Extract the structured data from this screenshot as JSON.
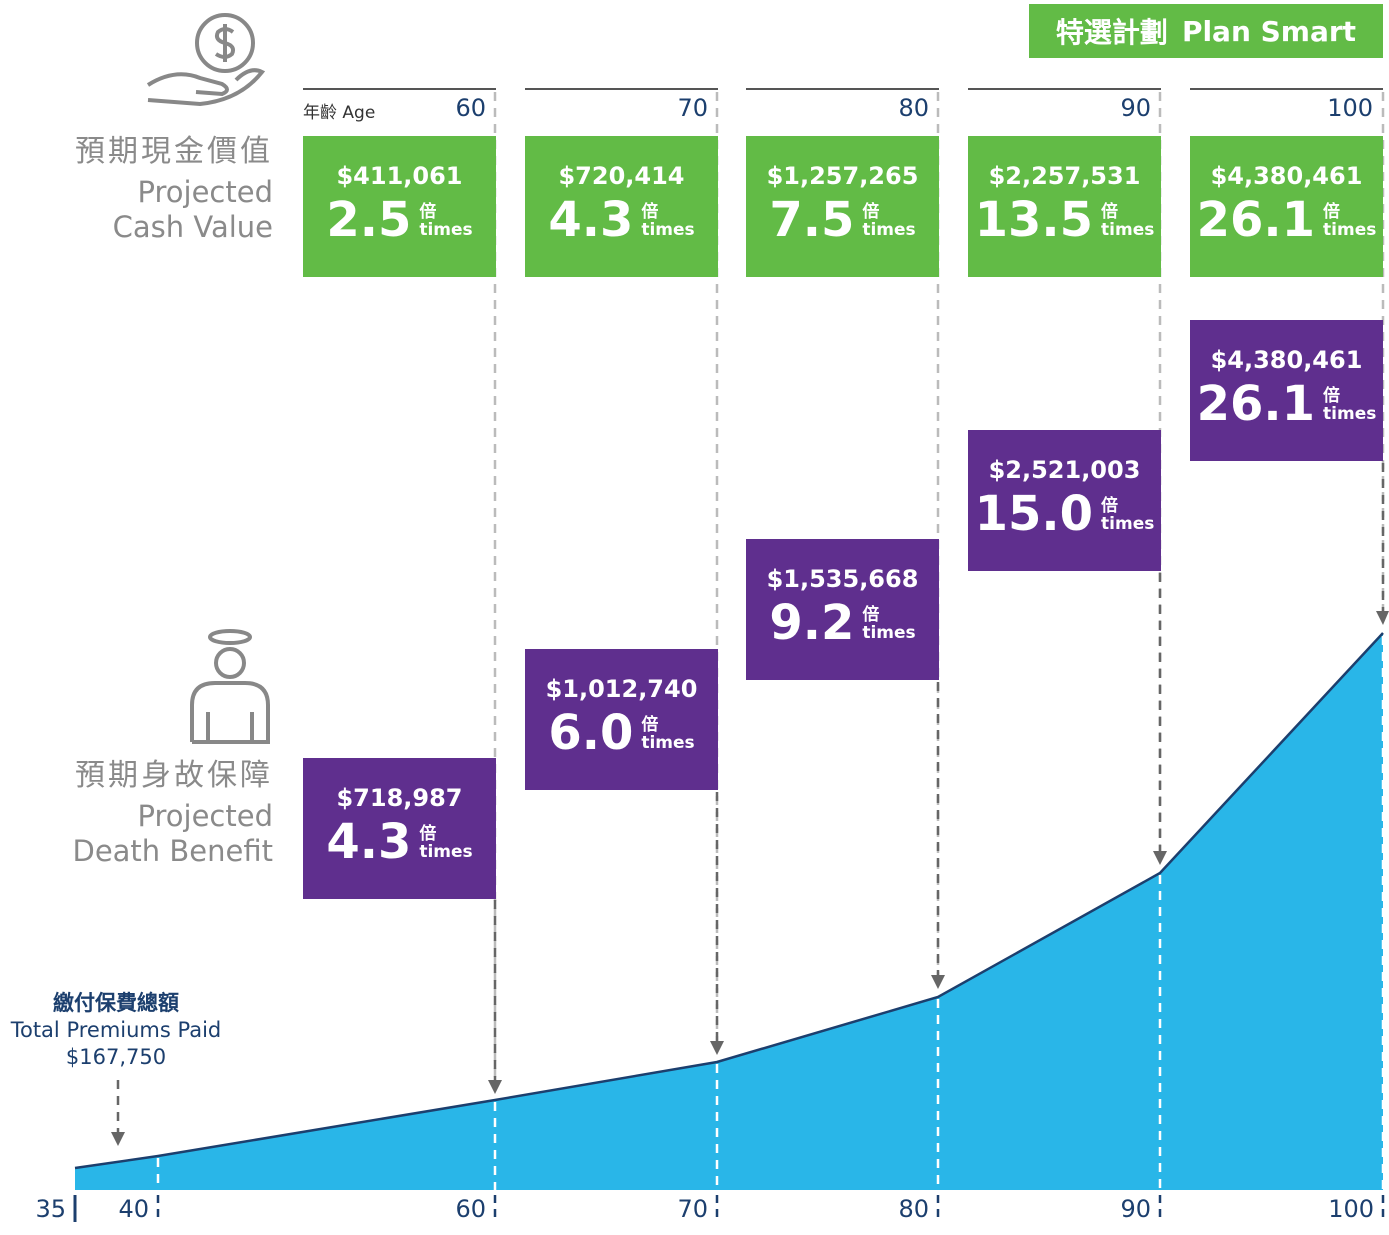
{
  "badge": {
    "zh": "特選計劃",
    "en": "Plan Smart"
  },
  "cash_value": {
    "zh": "預期現金價值",
    "en": [
      "Projected",
      "Cash Value"
    ]
  },
  "death_benefit": {
    "zh": "預期身故保障",
    "en": [
      "Projected",
      "Death Benefit"
    ]
  },
  "age_label": "年齡 Age",
  "multiple_unit": {
    "zh": "倍",
    "en": "times"
  },
  "columns": [
    {
      "age": 60,
      "cash_value": "$411,061",
      "cash_multiple": "2.5",
      "death_benefit": "$718,987",
      "death_multiple": "4.3"
    },
    {
      "age": 70,
      "cash_value": "$720,414",
      "cash_multiple": "4.3",
      "death_benefit": "$1,012,740",
      "death_multiple": "6.0"
    },
    {
      "age": 80,
      "cash_value": "$1,257,265",
      "cash_multiple": "7.5",
      "death_benefit": "$1,535,668",
      "death_multiple": "9.2"
    },
    {
      "age": 90,
      "cash_value": "$2,257,531",
      "cash_multiple": "13.5",
      "death_benefit": "$2,521,003",
      "death_multiple": "15.0"
    },
    {
      "age": 100,
      "cash_value": "$4,380,461",
      "cash_multiple": "26.1",
      "death_benefit": "$4,380,461",
      "death_multiple": "26.1"
    }
  ],
  "premiums": {
    "zh": "繳付保費總額",
    "en": "Total Premiums Paid",
    "amount": "$167,750"
  },
  "axis_ages": [
    35,
    40,
    60,
    70,
    80,
    90,
    100
  ]
}
